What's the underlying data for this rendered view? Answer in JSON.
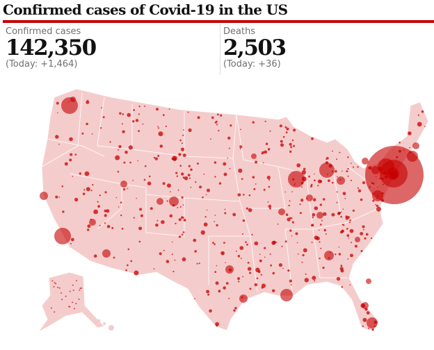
{
  "title": "Confirmed cases of Covid-19 in the US",
  "cases": {
    "label": "Confirmed cases",
    "value": "142,350",
    "today": "(Today: +1,464)"
  },
  "deaths": {
    "label": "Deaths",
    "value": "2,503",
    "today": "(Today: +36)"
  },
  "colors": {
    "accent": "#c70000",
    "land": "#f5cccc",
    "bubble": "#c70000"
  }
}
